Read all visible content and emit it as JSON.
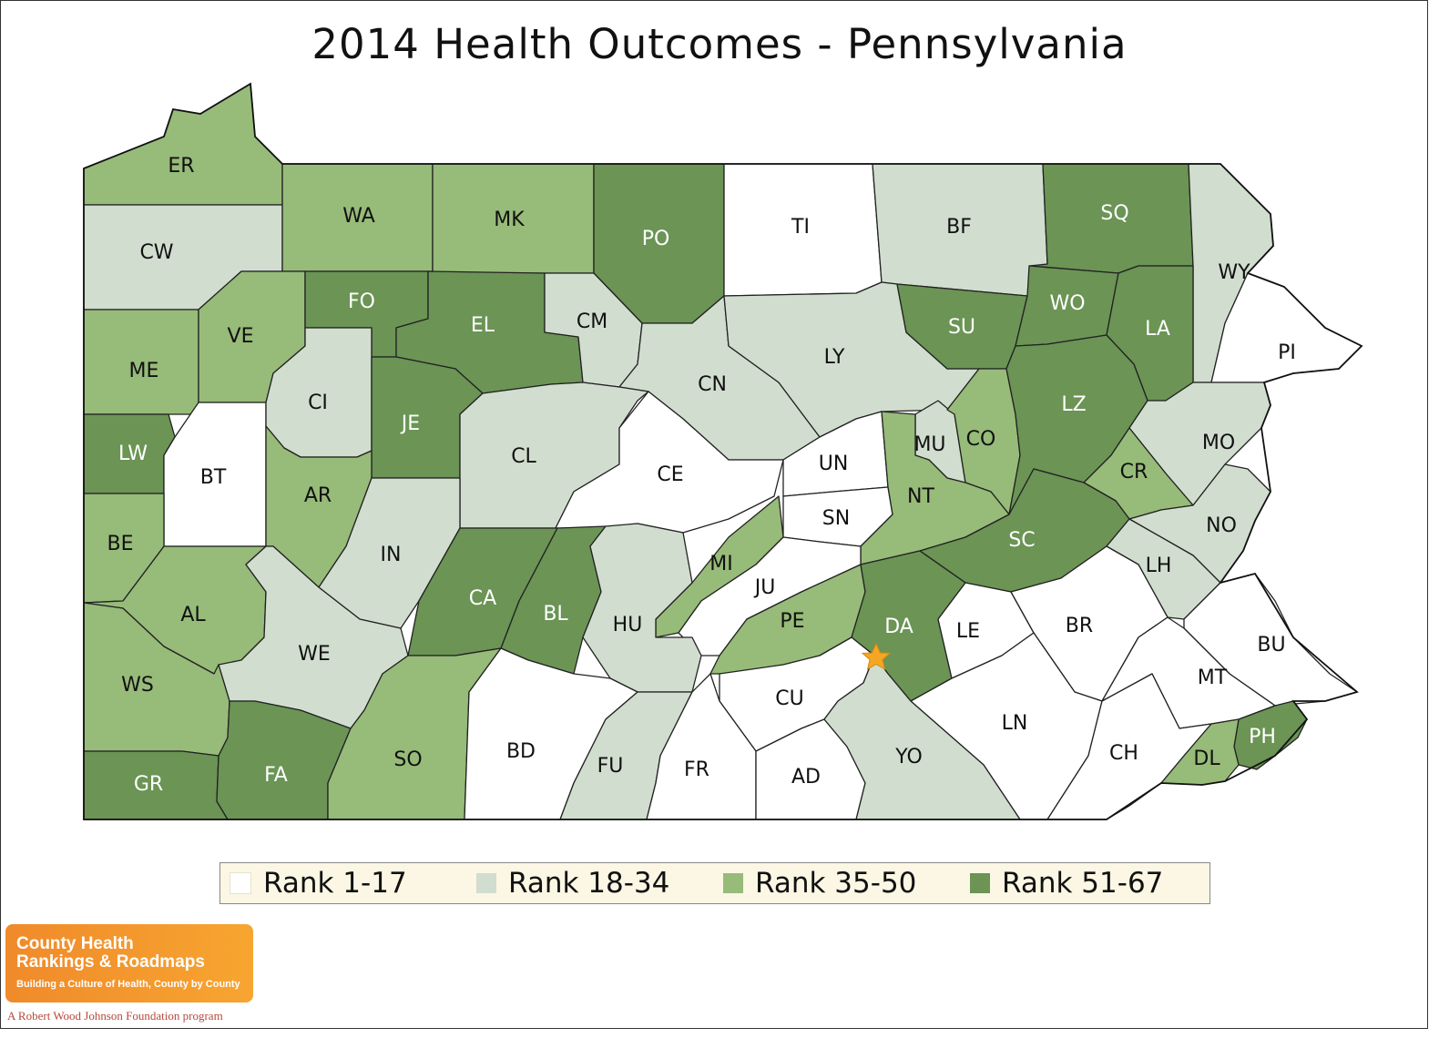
{
  "title": "2014 Health Outcomes - Pennsylvania",
  "colors": {
    "rank_1_17": "#ffffff",
    "rank_18_34": "#d1decf",
    "rank_35_50": "#97bb79",
    "rank_51_67": "#6b9455",
    "label_dark": "#111111",
    "label_light": "#ffffff",
    "marker": "#f5a623"
  },
  "legend": [
    {
      "label": "Rank 1-17",
      "class": "rank_1_17"
    },
    {
      "label": "Rank 18-34",
      "class": "rank_18_34"
    },
    {
      "label": "Rank 35-50",
      "class": "rank_35_50"
    },
    {
      "label": "Rank 51-67",
      "class": "rank_51_67"
    }
  ],
  "counties": [
    {
      "code": "ER",
      "class": "rank_35_50"
    },
    {
      "code": "CW",
      "class": "rank_18_34"
    },
    {
      "code": "WA",
      "class": "rank_35_50"
    },
    {
      "code": "MK",
      "class": "rank_35_50"
    },
    {
      "code": "PO",
      "class": "rank_51_67"
    },
    {
      "code": "TI",
      "class": "rank_1_17"
    },
    {
      "code": "BF",
      "class": "rank_18_34"
    },
    {
      "code": "SQ",
      "class": "rank_51_67"
    },
    {
      "code": "WY",
      "class": "rank_18_34"
    },
    {
      "code": "ME",
      "class": "rank_35_50"
    },
    {
      "code": "VE",
      "class": "rank_35_50"
    },
    {
      "code": "FO",
      "class": "rank_51_67"
    },
    {
      "code": "EL",
      "class": "rank_51_67"
    },
    {
      "code": "CM",
      "class": "rank_18_34"
    },
    {
      "code": "CN",
      "class": "rank_18_34"
    },
    {
      "code": "LY",
      "class": "rank_18_34"
    },
    {
      "code": "SU",
      "class": "rank_51_67"
    },
    {
      "code": "WO",
      "class": "rank_51_67"
    },
    {
      "code": "LA",
      "class": "rank_51_67"
    },
    {
      "code": "PI",
      "class": "rank_1_17"
    },
    {
      "code": "LW",
      "class": "rank_51_67"
    },
    {
      "code": "BT",
      "class": "rank_1_17"
    },
    {
      "code": "CI",
      "class": "rank_18_34"
    },
    {
      "code": "JE",
      "class": "rank_51_67"
    },
    {
      "code": "CL",
      "class": "rank_18_34"
    },
    {
      "code": "CE",
      "class": "rank_1_17"
    },
    {
      "code": "UN",
      "class": "rank_1_17"
    },
    {
      "code": "MU",
      "class": "rank_18_34"
    },
    {
      "code": "CO",
      "class": "rank_35_50"
    },
    {
      "code": "LZ",
      "class": "rank_51_67"
    },
    {
      "code": "MO",
      "class": "rank_18_34"
    },
    {
      "code": "CR",
      "class": "rank_35_50"
    },
    {
      "code": "BE",
      "class": "rank_35_50"
    },
    {
      "code": "AR",
      "class": "rank_35_50"
    },
    {
      "code": "IN",
      "class": "rank_18_34"
    },
    {
      "code": "SN",
      "class": "rank_1_17"
    },
    {
      "code": "NT",
      "class": "rank_35_50"
    },
    {
      "code": "SC",
      "class": "rank_51_67"
    },
    {
      "code": "NO",
      "class": "rank_18_34"
    },
    {
      "code": "LH",
      "class": "rank_18_34"
    },
    {
      "code": "AL",
      "class": "rank_35_50"
    },
    {
      "code": "CA",
      "class": "rank_51_67"
    },
    {
      "code": "BL",
      "class": "rank_51_67"
    },
    {
      "code": "MI",
      "class": "rank_35_50"
    },
    {
      "code": "JU",
      "class": "rank_1_17"
    },
    {
      "code": "HU",
      "class": "rank_18_34"
    },
    {
      "code": "PE",
      "class": "rank_35_50"
    },
    {
      "code": "DA",
      "class": "rank_51_67"
    },
    {
      "code": "LE",
      "class": "rank_1_17"
    },
    {
      "code": "BR",
      "class": "rank_1_17"
    },
    {
      "code": "BU",
      "class": "rank_1_17"
    },
    {
      "code": "WE",
      "class": "rank_18_34"
    },
    {
      "code": "WS",
      "class": "rank_35_50"
    },
    {
      "code": "MT",
      "class": "rank_1_17"
    },
    {
      "code": "CU",
      "class": "rank_1_17"
    },
    {
      "code": "LN",
      "class": "rank_1_17"
    },
    {
      "code": "PH",
      "class": "rank_51_67"
    },
    {
      "code": "GR",
      "class": "rank_51_67"
    },
    {
      "code": "FA",
      "class": "rank_51_67"
    },
    {
      "code": "SO",
      "class": "rank_35_50"
    },
    {
      "code": "BD",
      "class": "rank_1_17"
    },
    {
      "code": "FU",
      "class": "rank_18_34"
    },
    {
      "code": "FR",
      "class": "rank_1_17"
    },
    {
      "code": "AD",
      "class": "rank_1_17"
    },
    {
      "code": "YO",
      "class": "rank_18_34"
    },
    {
      "code": "CH",
      "class": "rank_1_17"
    },
    {
      "code": "DL",
      "class": "rank_35_50"
    }
  ],
  "logo": {
    "line1": "County Health",
    "line2": "Rankings & Roadmaps",
    "tagline": "Building a Culture of Health, County by County",
    "sub": "A Robert Wood Johnson Foundation program"
  }
}
